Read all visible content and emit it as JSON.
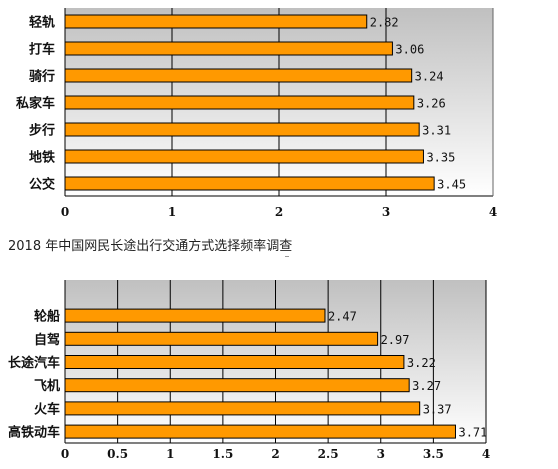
{
  "caption": "2018 年中国网民长途出行交通方式选择频率调查",
  "colors": {
    "bar_fill": "#ff9900",
    "bar_stroke": "#000000",
    "plot_bg_top": "#c0c0c0",
    "plot_bg_bottom": "#ffffff",
    "grid": "#000000"
  },
  "chart_data": [
    {
      "type": "bar",
      "orientation": "horizontal",
      "categories": [
        "轻轨",
        "打车",
        "骑行",
        "私家车",
        "步行",
        "地铁",
        "公交"
      ],
      "values": [
        2.82,
        3.06,
        3.24,
        3.26,
        3.31,
        3.35,
        3.45
      ],
      "value_labels": [
        "2.82",
        "3.06",
        "3.24",
        "3.26",
        "3.31",
        "3.35",
        "3.45"
      ],
      "xlim": [
        0,
        4
      ],
      "xticks": [
        "0",
        "1",
        "2",
        "3",
        "4"
      ],
      "grid": true,
      "legend": "none"
    },
    {
      "type": "bar",
      "orientation": "horizontal",
      "categories": [
        "轮船",
        "自驾",
        "长途汽车",
        "飞机",
        "火车",
        "高铁动车"
      ],
      "values": [
        2.47,
        2.97,
        3.22,
        3.27,
        3.37,
        3.71
      ],
      "value_labels": [
        "2.47",
        "2.97",
        "3.22",
        "3.27",
        "3.37",
        "3.71"
      ],
      "xlim": [
        0,
        4
      ],
      "xticks": [
        "0",
        "0.5",
        "1",
        "1.5",
        "2",
        "2.5",
        "3",
        "3.5",
        "4"
      ],
      "grid": true,
      "legend": "none"
    }
  ]
}
